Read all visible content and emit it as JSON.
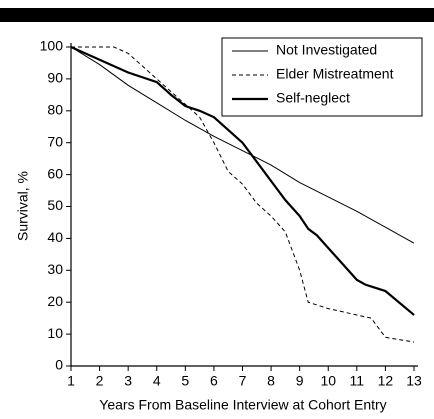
{
  "chart_data": {
    "type": "line",
    "x_label": "Years From Baseline Interview at Cohort Entry",
    "y_label": "Survival, %",
    "xlim": [
      1,
      13
    ],
    "xticks": [
      1,
      2,
      3,
      4,
      5,
      6,
      7,
      8,
      9,
      10,
      11,
      12,
      13
    ],
    "ylim": [
      0,
      100
    ],
    "yticks": [
      0,
      10,
      20,
      30,
      40,
      50,
      60,
      70,
      80,
      90,
      100
    ],
    "grid": false,
    "legend": "upper right",
    "series": [
      {
        "name": "Not Investigated",
        "color": "#000000",
        "dash": "solid",
        "width": 1,
        "x": [
          1,
          2,
          3,
          4,
          5,
          6,
          7,
          8,
          9,
          10,
          11,
          12,
          13
        ],
        "values": [
          100,
          94.5,
          88,
          82.5,
          77,
          72,
          67.5,
          63,
          57.5,
          53,
          48.5,
          43.5,
          38.5
        ]
      },
      {
        "name": "Elder Mistreatment",
        "color": "#000000",
        "dash": "dashed",
        "width": 1,
        "x": [
          1,
          2,
          2.5,
          3,
          4,
          5,
          5.5,
          6,
          6.5,
          7,
          7.5,
          8,
          8.5,
          9,
          9.3,
          10,
          10.5,
          11,
          11.5,
          12,
          13
        ],
        "values": [
          100,
          100,
          100,
          98,
          90,
          82,
          78,
          70,
          61,
          57,
          51,
          47,
          42,
          30,
          20,
          18,
          17,
          16,
          15,
          9,
          7.5
        ]
      },
      {
        "name": "Self-neglect",
        "color": "#000000",
        "dash": "solid",
        "width": 2.2,
        "x": [
          1,
          2,
          3,
          4,
          4.5,
          5,
          5.5,
          6,
          7,
          7.5,
          8,
          8.5,
          9,
          9.3,
          9.6,
          10,
          10.5,
          11,
          11.3,
          12,
          13
        ],
        "values": [
          100,
          96,
          92,
          89,
          85,
          81.5,
          80,
          78,
          70,
          64,
          58,
          52,
          47,
          43,
          41,
          37,
          32,
          27,
          25.5,
          23.5,
          16
        ]
      }
    ]
  }
}
